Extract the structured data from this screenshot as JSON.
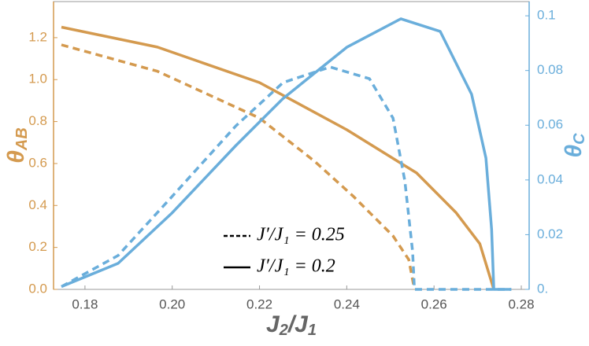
{
  "chart_data": {
    "type": "line",
    "xlabel": {
      "text": "J",
      "sub": "2",
      "sep": "/J",
      "sub2": "1"
    },
    "ylabel": {
      "text": "θ",
      "sub": "AB"
    },
    "y2label": {
      "text": "θ",
      "sub": "C"
    },
    "xlim": [
      0.1728,
      0.2818
    ],
    "xticks": [
      0.18,
      {
        "value": 0.2,
        "label": "0.20"
      },
      0.22,
      0.24,
      0.26,
      0.28
    ],
    "ylim": [
      0,
      1.372
    ],
    "yticks": [
      {
        "value": 0,
        "label": "0.0"
      },
      0.2,
      0.4,
      0.6,
      0.8,
      {
        "value": 1,
        "label": "1.0"
      },
      1.2
    ],
    "y2lim": [
      0,
      0.1052
    ],
    "y2ticks": [
      {
        "value": 0,
        "label": "0."
      },
      0.02,
      0.04,
      0.06,
      0.08,
      0.1
    ],
    "ycolor": "#d49a4f",
    "y2color": "#6aaedb",
    "series": [
      {
        "name": "J′/J₁ = 0.25",
        "color": "#d49a4f",
        "dash": true,
        "axis": "y",
        "x": [
          0.1746,
          0.1966,
          0.22,
          0.2326,
          0.2416,
          0.2506,
          0.2542,
          0.2555
        ],
        "values": [
          1.166,
          1.04,
          0.817,
          0.611,
          0.442,
          0.255,
          0.142,
          0
        ]
      },
      {
        "name": "J′/J₁ = 0.2",
        "color": "#d49a4f",
        "dash": false,
        "axis": "y",
        "x": [
          0.1746,
          0.1966,
          0.22,
          0.24,
          0.256,
          0.265,
          0.2705,
          0.2737
        ],
        "values": [
          1.25,
          1.155,
          0.986,
          0.761,
          0.555,
          0.367,
          0.217,
          0
        ]
      },
      {
        "name": "J′/J₁ = 0.25",
        "color": "#6aaedb",
        "dash": true,
        "axis": "y2",
        "x": [
          0.1746,
          0.1876,
          0.2,
          0.2146,
          0.2254,
          0.2362,
          0.2452,
          0.2506,
          0.2533,
          0.2551,
          0.2555,
          0.2777
        ],
        "values": [
          0.001,
          0.0124,
          0.034,
          0.0598,
          0.0756,
          0.0813,
          0.077,
          0.0626,
          0.0397,
          0.0138,
          0,
          0
        ]
      },
      {
        "name": "J′/J₁ = 0.2",
        "color": "#6aaedb",
        "dash": false,
        "axis": "y2",
        "x": [
          0.1746,
          0.1876,
          0.2,
          0.2146,
          0.2254,
          0.24,
          0.2524,
          0.2614,
          0.2686,
          0.2719,
          0.2732,
          0.2737,
          0.2777
        ],
        "values": [
          0.001,
          0.0095,
          0.028,
          0.0526,
          0.0698,
          0.0885,
          0.0989,
          0.0943,
          0.0713,
          0.048,
          0.022,
          0,
          0
        ]
      }
    ],
    "legend": [
      0,
      1
    ]
  }
}
